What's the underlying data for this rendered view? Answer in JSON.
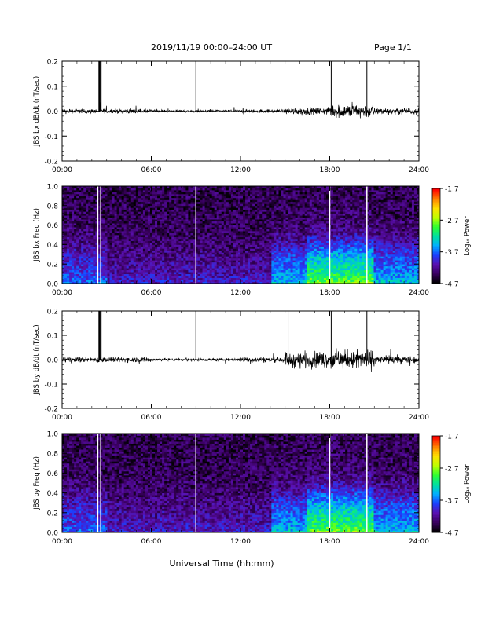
{
  "header": {
    "title": "2019/11/19   00:00–24:00 UT",
    "page": "Page 1/1"
  },
  "xlabel": "Universal Time (hh:mm)",
  "colorbar": {
    "label": "Log₁₀ Power",
    "ticks": [
      "-1.7",
      "-2.7",
      "-3.7",
      "-4.7"
    ],
    "range": [
      -4.7,
      -1.7
    ],
    "colors": [
      "#000000",
      "#3a0060",
      "#5a10b0",
      "#1a40ff",
      "#00b0ff",
      "#00e0a0",
      "#30ff30",
      "#c0ff00",
      "#ffe000",
      "#ff8000",
      "#ff0000"
    ]
  },
  "chart_data": [
    {
      "type": "line",
      "ylabel": "JBS bx dB/dt (nT/sec)",
      "xlim": [
        0,
        24
      ],
      "ylim": [
        -0.2,
        0.2
      ],
      "xticks": [
        "00:00",
        "06:00",
        "12:00",
        "18:00",
        "24:00"
      ],
      "yticks": [
        "-0.2",
        "-0.1",
        "0.0",
        "0.1",
        "0.2"
      ],
      "spikes_hours": [
        2.5,
        2.6,
        9.0,
        18.1,
        20.5
      ],
      "noise_profile": [
        {
          "from": 0,
          "to": 6,
          "amp": 0.008
        },
        {
          "from": 6,
          "to": 12,
          "amp": 0.004
        },
        {
          "from": 12,
          "to": 15,
          "amp": 0.006
        },
        {
          "from": 15,
          "to": 18,
          "amp": 0.012
        },
        {
          "from": 18,
          "to": 21,
          "amp": 0.025
        },
        {
          "from": 21,
          "to": 24,
          "amp": 0.012
        }
      ]
    },
    {
      "type": "heatmap",
      "ylabel": "JBS bx Freq (Hz)",
      "xlim": [
        0,
        24
      ],
      "ylim": [
        0,
        1.0
      ],
      "xticks": [
        "00:00",
        "06:00",
        "12:00",
        "18:00",
        "24:00"
      ],
      "yticks": [
        "0.0",
        "0.2",
        "0.4",
        "0.6",
        "0.8",
        "1.0"
      ],
      "gap_hours": [
        2.4,
        2.6,
        9.0,
        18.0,
        20.5
      ]
    },
    {
      "type": "line",
      "ylabel": "JBS by dB/dt (nT/sec)",
      "xlim": [
        0,
        24
      ],
      "ylim": [
        -0.2,
        0.2
      ],
      "xticks": [
        "00:00",
        "06:00",
        "12:00",
        "18:00",
        "24:00"
      ],
      "yticks": [
        "-0.2",
        "-0.1",
        "0.0",
        "0.1",
        "0.2"
      ],
      "spikes_hours": [
        2.5,
        2.6,
        9.0,
        15.2,
        18.1,
        20.5
      ],
      "noise_profile": [
        {
          "from": 0,
          "to": 6,
          "amp": 0.01
        },
        {
          "from": 6,
          "to": 12,
          "amp": 0.005
        },
        {
          "from": 12,
          "to": 15,
          "amp": 0.01
        },
        {
          "from": 15,
          "to": 18,
          "amp": 0.03
        },
        {
          "from": 18,
          "to": 21,
          "amp": 0.035
        },
        {
          "from": 21,
          "to": 24,
          "amp": 0.015
        }
      ]
    },
    {
      "type": "heatmap",
      "ylabel": "JBS by Freq (Hz)",
      "xlim": [
        0,
        24
      ],
      "ylim": [
        0,
        1.0
      ],
      "xticks": [
        "00:00",
        "06:00",
        "12:00",
        "18:00",
        "24:00"
      ],
      "yticks": [
        "0.0",
        "0.2",
        "0.4",
        "0.6",
        "0.8",
        "1.0"
      ],
      "gap_hours": [
        2.4,
        2.6,
        9.0,
        18.0,
        20.5
      ]
    }
  ]
}
